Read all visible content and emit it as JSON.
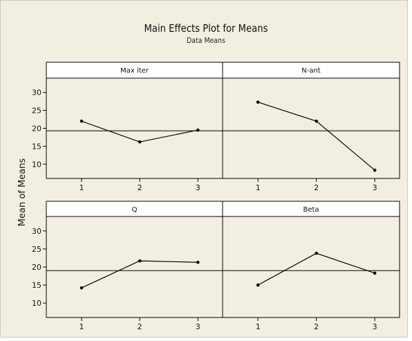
{
  "chart_data": {
    "type": "line",
    "title": "Main Effects Plot for Means",
    "subtitle": "Data Means",
    "ylabel": "Mean of Means",
    "ylim": [
      6,
      34
    ],
    "yticks": [
      10,
      15,
      20,
      25,
      30
    ],
    "categories": [
      "1",
      "2",
      "3"
    ],
    "grid": false,
    "panels": [
      {
        "name": "Max iter",
        "values": [
          22.0,
          16.2,
          19.5
        ],
        "reference": 19.3
      },
      {
        "name": "N-ant",
        "values": [
          27.3,
          22.0,
          8.3
        ],
        "reference": 19.3
      },
      {
        "name": "Q",
        "values": [
          14.2,
          21.7,
          21.3
        ],
        "reference": 19.0
      },
      {
        "name": "Beta",
        "values": [
          15.0,
          23.8,
          18.3
        ],
        "reference": 19.0
      }
    ]
  },
  "colors": {
    "background": "#f2efe2",
    "line": "#000000",
    "header": "#ffffff"
  }
}
